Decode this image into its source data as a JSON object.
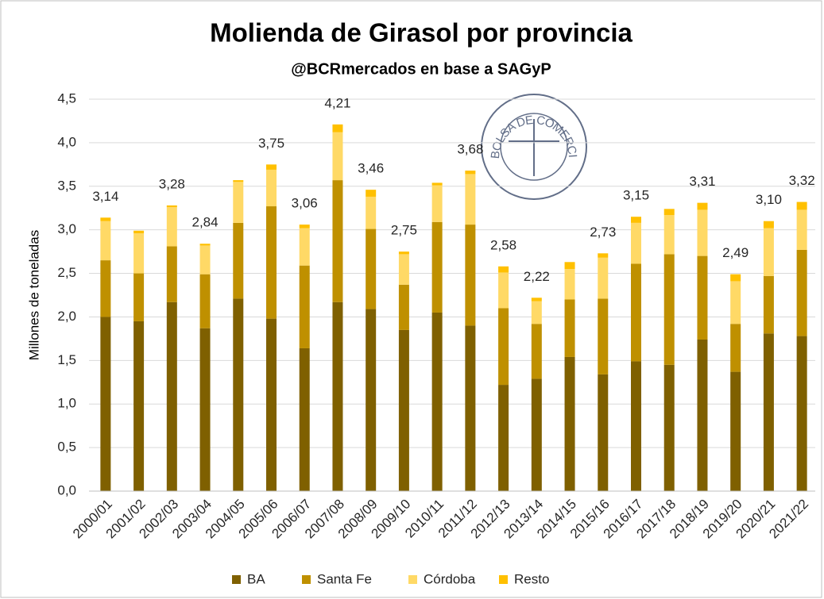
{
  "chart_data": {
    "type": "stacked_bar",
    "title": "Molienda de Girasol por provincia",
    "subtitle": "@BCRmercados en base a SAGyP",
    "y_label": "Millones de toneladas",
    "logo_text": "BOLSA DE COMERCIO DE ROSARIO",
    "categories": [
      "2000/01",
      "2001/02",
      "2002/03",
      "2003/04",
      "2004/05",
      "2005/06",
      "2006/07",
      "2007/08",
      "2008/09",
      "2009/10",
      "2010/11",
      "2011/12",
      "2012/13",
      "2013/14",
      "2014/15",
      "2015/16",
      "2016/17",
      "2017/18",
      "2018/19",
      "2019/20",
      "2020/21",
      "2021/22"
    ],
    "series": [
      {
        "name": "BA",
        "color": "#7f6000",
        "values": [
          2.0,
          1.95,
          2.17,
          1.87,
          2.21,
          1.98,
          1.64,
          2.17,
          2.09,
          1.85,
          2.05,
          1.9,
          1.22,
          1.29,
          1.54,
          1.34,
          1.49,
          1.45,
          1.74,
          1.37,
          1.81,
          1.78
        ]
      },
      {
        "name": "Santa Fe",
        "color": "#bf9000",
        "values": [
          0.65,
          0.55,
          0.64,
          0.62,
          0.87,
          1.29,
          0.95,
          1.4,
          0.92,
          0.52,
          1.04,
          1.16,
          0.88,
          0.63,
          0.66,
          0.87,
          1.12,
          1.27,
          0.96,
          0.55,
          0.66,
          0.99
        ]
      },
      {
        "name": "Córdoba",
        "color": "#ffd966",
        "values": [
          0.45,
          0.46,
          0.45,
          0.33,
          0.47,
          0.42,
          0.43,
          0.55,
          0.37,
          0.35,
          0.42,
          0.58,
          0.41,
          0.26,
          0.35,
          0.47,
          0.47,
          0.45,
          0.53,
          0.49,
          0.55,
          0.46
        ]
      },
      {
        "name": "Resto",
        "color": "#ffc000",
        "values": [
          0.04,
          0.03,
          0.02,
          0.02,
          0.02,
          0.06,
          0.04,
          0.09,
          0.08,
          0.03,
          0.03,
          0.04,
          0.07,
          0.04,
          0.08,
          0.05,
          0.07,
          0.07,
          0.08,
          0.08,
          0.08,
          0.09
        ]
      }
    ],
    "total_values": [
      3.14,
      null,
      3.28,
      2.84,
      null,
      3.75,
      3.06,
      4.21,
      3.46,
      2.75,
      null,
      3.68,
      2.58,
      2.22,
      null,
      2.73,
      3.15,
      null,
      3.31,
      2.49,
      3.1,
      3.32
    ],
    "total_labels": [
      "3,14",
      null,
      "3,28",
      "2,84",
      null,
      "3,75",
      "3,06",
      "4,21",
      "3,46",
      "2,75",
      null,
      "3,68",
      "2,58",
      "2,22",
      null,
      "2,73",
      "3,15",
      null,
      "3,31",
      "2,49",
      "3,10",
      "3,32"
    ],
    "ylim": [
      0,
      4.5
    ],
    "yticks": [
      {
        "value": 0,
        "label": "0,0"
      },
      {
        "value": 0.5,
        "label": "0,5"
      },
      {
        "value": 1,
        "label": "1,0"
      },
      {
        "value": 1.5,
        "label": "1,5"
      },
      {
        "value": 2,
        "label": "2,0"
      },
      {
        "value": 2.5,
        "label": "2,5"
      },
      {
        "value": 3,
        "label": "3,0"
      },
      {
        "value": 3.5,
        "label": "3,5"
      },
      {
        "value": 4,
        "label": "4,0"
      },
      {
        "value": 4.5,
        "label": "4,5"
      }
    ],
    "grid": true,
    "legend": "bottom"
  }
}
